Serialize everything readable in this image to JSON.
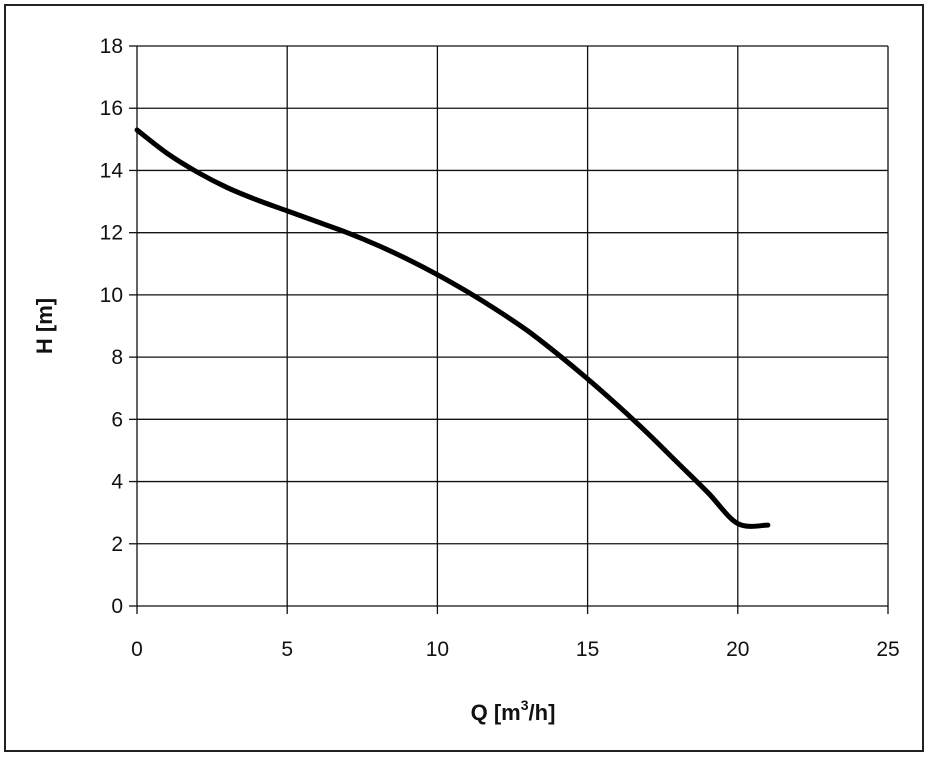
{
  "chart_data": {
    "type": "line",
    "xlabel": "Q [m",
    "xlabel_superscript": "3",
    "xlabel_suffix": "/h]",
    "ylabel": "H [m]",
    "xlim": [
      0,
      25
    ],
    "ylim": [
      0,
      18
    ],
    "xticks": [
      0,
      5,
      10,
      15,
      20,
      25
    ],
    "yticks": [
      0,
      2,
      4,
      6,
      8,
      10,
      12,
      14,
      16,
      18
    ],
    "grid": true,
    "line_color": "#000000",
    "series": [
      {
        "x": [
          0,
          1,
          2,
          3,
          4,
          5,
          6,
          7,
          8,
          9,
          10,
          11,
          12,
          13,
          14,
          15,
          16,
          17,
          18,
          19,
          20,
          21
        ],
        "y": [
          15.3,
          14.55,
          13.95,
          13.45,
          13.05,
          12.7,
          12.35,
          12.0,
          11.6,
          11.15,
          10.65,
          10.1,
          9.5,
          8.85,
          8.1,
          7.3,
          6.45,
          5.55,
          4.6,
          3.65,
          2.65,
          2.6
        ]
      }
    ]
  }
}
